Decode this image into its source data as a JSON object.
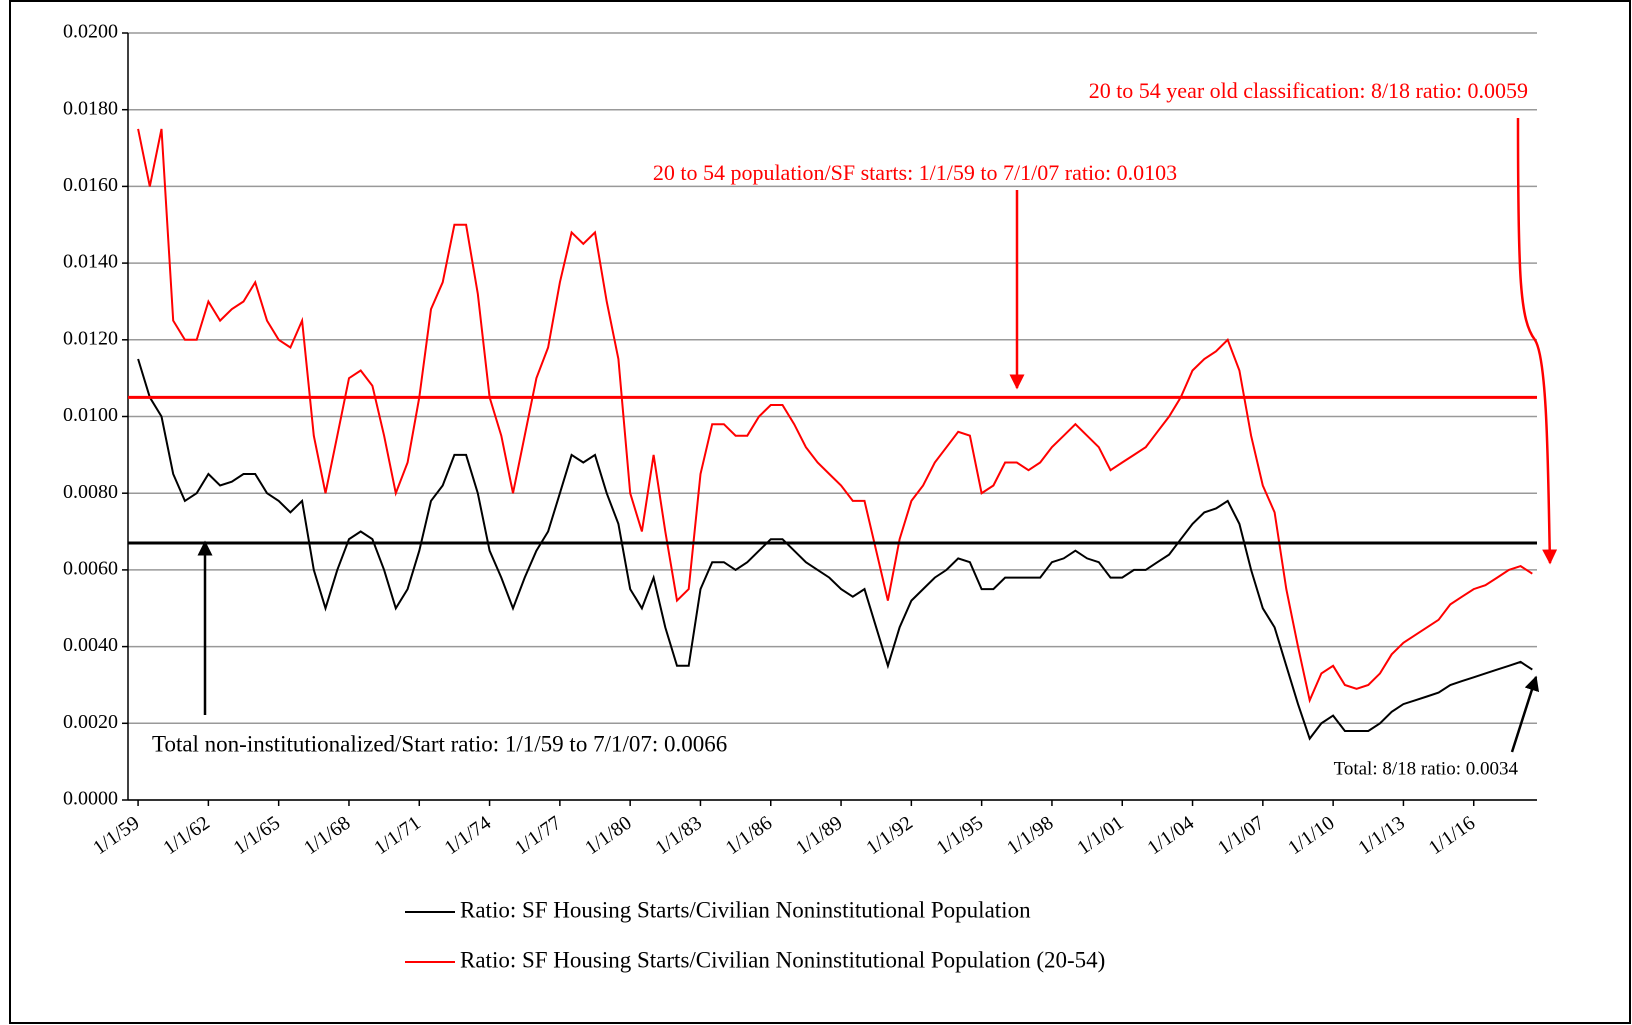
{
  "chart_data": {
    "type": "line",
    "ylim": [
      0,
      0.02
    ],
    "yticks": [
      {
        "value": 0,
        "label": "0.0000"
      },
      {
        "value": 0.002,
        "label": "0.0020"
      },
      {
        "value": 0.004,
        "label": "0.0040"
      },
      {
        "value": 0.006,
        "label": "0.0060"
      },
      {
        "value": 0.008,
        "label": "0.0080"
      },
      {
        "value": 0.01,
        "label": "0.0100"
      },
      {
        "value": 0.012,
        "label": "0.0120"
      },
      {
        "value": 0.014,
        "label": "0.0140"
      },
      {
        "value": 0.016,
        "label": "0.0160"
      },
      {
        "value": 0.018,
        "label": "0.0180"
      },
      {
        "value": 0.02,
        "label": "0.0200"
      }
    ],
    "grid": true,
    "xlim": [
      1958.57,
      2018.7
    ],
    "xticks": [
      {
        "value": 1959,
        "label": "1/1/59"
      },
      {
        "value": 1962,
        "label": "1/1/62"
      },
      {
        "value": 1965,
        "label": "1/1/65"
      },
      {
        "value": 1968,
        "label": "1/1/68"
      },
      {
        "value": 1971,
        "label": "1/1/71"
      },
      {
        "value": 1974,
        "label": "1/1/74"
      },
      {
        "value": 1977,
        "label": "1/1/77"
      },
      {
        "value": 1980,
        "label": "1/1/80"
      },
      {
        "value": 1983,
        "label": "1/1/83"
      },
      {
        "value": 1986,
        "label": "1/1/86"
      },
      {
        "value": 1989,
        "label": "1/1/89"
      },
      {
        "value": 1992,
        "label": "1/1/92"
      },
      {
        "value": 1995,
        "label": "1/1/95"
      },
      {
        "value": 1998,
        "label": "1/1/98"
      },
      {
        "value": 2001,
        "label": "1/1/01"
      },
      {
        "value": 2004,
        "label": "1/1/04"
      },
      {
        "value": 2007,
        "label": "1/1/07"
      },
      {
        "value": 2010,
        "label": "1/1/10"
      },
      {
        "value": 2013,
        "label": "1/1/13"
      },
      {
        "value": 2016,
        "label": "1/1/16"
      }
    ],
    "x": [
      1959,
      1959.5,
      1960,
      1960.5,
      1961,
      1961.5,
      1962,
      1962.5,
      1963,
      1963.5,
      1964,
      1964.5,
      1965,
      1965.5,
      1966,
      1966.5,
      1967,
      1967.5,
      1968,
      1968.5,
      1969,
      1969.5,
      1970,
      1970.5,
      1971,
      1971.5,
      1972,
      1972.5,
      1973,
      1973.5,
      1974,
      1974.5,
      1975,
      1975.5,
      1976,
      1976.5,
      1977,
      1977.5,
      1978,
      1978.5,
      1979,
      1979.5,
      1980,
      1980.5,
      1981,
      1981.5,
      1982,
      1982.5,
      1983,
      1983.5,
      1984,
      1984.5,
      1985,
      1985.5,
      1986,
      1986.5,
      1987,
      1987.5,
      1988,
      1988.5,
      1989,
      1989.5,
      1990,
      1990.5,
      1991,
      1991.5,
      1992,
      1992.5,
      1993,
      1993.5,
      1994,
      1994.5,
      1995,
      1995.5,
      1996,
      1996.5,
      1997,
      1997.5,
      1998,
      1998.5,
      1999,
      1999.5,
      2000,
      2000.5,
      2001,
      2001.5,
      2002,
      2002.5,
      2003,
      2003.5,
      2004,
      2004.5,
      2005,
      2005.5,
      2006,
      2006.5,
      2007,
      2007.5,
      2008,
      2008.5,
      2009,
      2009.5,
      2010,
      2010.5,
      2011,
      2011.5,
      2012,
      2012.5,
      2013,
      2013.5,
      2014,
      2014.5,
      2015,
      2015.5,
      2016,
      2016.5,
      2017,
      2017.5,
      2018,
      2018.5
    ],
    "series": [
      {
        "name": "Ratio: SF Housing Starts/Civilian Noninstitutional Population",
        "color": "#000000",
        "values": [
          0.0115,
          0.0105,
          0.01,
          0.0085,
          0.0078,
          0.008,
          0.0085,
          0.0082,
          0.0083,
          0.0085,
          0.0085,
          0.008,
          0.0078,
          0.0075,
          0.0078,
          0.006,
          0.005,
          0.006,
          0.0068,
          0.007,
          0.0068,
          0.006,
          0.005,
          0.0055,
          0.0065,
          0.0078,
          0.0082,
          0.009,
          0.009,
          0.008,
          0.0065,
          0.0058,
          0.005,
          0.0058,
          0.0065,
          0.007,
          0.008,
          0.009,
          0.0088,
          0.009,
          0.008,
          0.0072,
          0.0055,
          0.005,
          0.0058,
          0.0045,
          0.0035,
          0.0035,
          0.0055,
          0.0062,
          0.0062,
          0.006,
          0.0062,
          0.0065,
          0.0068,
          0.0068,
          0.0065,
          0.0062,
          0.006,
          0.0058,
          0.0055,
          0.0053,
          0.0055,
          0.0045,
          0.0035,
          0.0045,
          0.0052,
          0.0055,
          0.0058,
          0.006,
          0.0063,
          0.0062,
          0.0055,
          0.0055,
          0.0058,
          0.0058,
          0.0058,
          0.0058,
          0.0062,
          0.0063,
          0.0065,
          0.0063,
          0.0062,
          0.0058,
          0.0058,
          0.006,
          0.006,
          0.0062,
          0.0064,
          0.0068,
          0.0072,
          0.0075,
          0.0076,
          0.0078,
          0.0072,
          0.006,
          0.005,
          0.0045,
          0.0035,
          0.0025,
          0.0016,
          0.002,
          0.0022,
          0.0018,
          0.0018,
          0.0018,
          0.002,
          0.0023,
          0.0025,
          0.0026,
          0.0027,
          0.0028,
          0.003,
          0.0031,
          0.0032,
          0.0033,
          0.0034,
          0.0035,
          0.0036,
          0.0034
        ]
      },
      {
        "name": "Ratio: SF Housing Starts/Civilian Noninstitutional Population (20-54)",
        "color": "#ff0000",
        "values": [
          0.0175,
          0.016,
          0.0175,
          0.0125,
          0.012,
          0.012,
          0.013,
          0.0125,
          0.0128,
          0.013,
          0.0135,
          0.0125,
          0.012,
          0.0118,
          0.0125,
          0.0095,
          0.008,
          0.0095,
          0.011,
          0.0112,
          0.0108,
          0.0095,
          0.008,
          0.0088,
          0.0105,
          0.0128,
          0.0135,
          0.015,
          0.015,
          0.0132,
          0.0105,
          0.0095,
          0.008,
          0.0095,
          0.011,
          0.0118,
          0.0135,
          0.0148,
          0.0145,
          0.0148,
          0.013,
          0.0115,
          0.008,
          0.007,
          0.009,
          0.007,
          0.0052,
          0.0055,
          0.0085,
          0.0098,
          0.0098,
          0.0095,
          0.0095,
          0.01,
          0.0103,
          0.0103,
          0.0098,
          0.0092,
          0.0088,
          0.0085,
          0.0082,
          0.0078,
          0.0078,
          0.0065,
          0.0052,
          0.0068,
          0.0078,
          0.0082,
          0.0088,
          0.0092,
          0.0096,
          0.0095,
          0.008,
          0.0082,
          0.0088,
          0.0088,
          0.0086,
          0.0088,
          0.0092,
          0.0095,
          0.0098,
          0.0095,
          0.0092,
          0.0086,
          0.0088,
          0.009,
          0.0092,
          0.0096,
          0.01,
          0.0105,
          0.0112,
          0.0115,
          0.0117,
          0.012,
          0.0112,
          0.0095,
          0.0082,
          0.0075,
          0.0055,
          0.004,
          0.0026,
          0.0033,
          0.0035,
          0.003,
          0.0029,
          0.003,
          0.0033,
          0.0038,
          0.0041,
          0.0043,
          0.0045,
          0.0047,
          0.0051,
          0.0053,
          0.0055,
          0.0056,
          0.0058,
          0.006,
          0.0061,
          0.0059
        ]
      }
    ],
    "reference_lines": [
      {
        "value": 0.0105,
        "color": "#ff0000"
      },
      {
        "value": 0.0067,
        "color": "#000000"
      }
    ],
    "annotations": [
      "20 to 54 year old classification: 8/18 ratio: 0.0059",
      "20 to 54 population/SF starts: 1/1/59 to 7/1/07 ratio: 0.0103",
      "Total non-institutionalized/Start ratio: 1/1/59 to 7/1/07: 0.0066",
      "Total: 8/18 ratio: 0.0034"
    ]
  }
}
